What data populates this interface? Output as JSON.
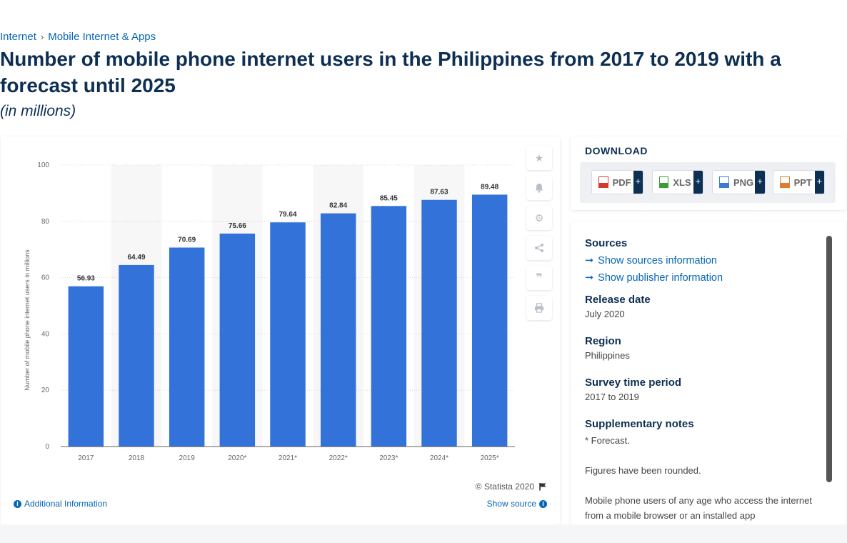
{
  "breadcrumb": {
    "item1": "Internet",
    "item2": "Mobile Internet & Apps",
    "sep": "›"
  },
  "title": "Number of mobile phone internet users in the Philippines from 2017 to 2019 with a forecast until 2025",
  "subtitle": "(in millions)",
  "chart_data": {
    "type": "bar",
    "categories": [
      "2017",
      "2018",
      "2019",
      "2020*",
      "2021*",
      "2022*",
      "2023*",
      "2024*",
      "2025*"
    ],
    "values": [
      56.93,
      64.49,
      70.69,
      75.66,
      79.64,
      82.84,
      85.45,
      87.63,
      89.48
    ],
    "value_labels": [
      "56.93",
      "64.49",
      "70.69",
      "75.66",
      "79.64",
      "82.84",
      "85.45",
      "87.63",
      "89.48"
    ],
    "ylabel": "Number of mobile phone internet users in millions",
    "xlabel": "",
    "ylim": [
      0,
      100
    ],
    "yticks": [
      "0",
      "20",
      "40",
      "60",
      "80",
      "100"
    ],
    "grid": true,
    "bar_color": "#3373d9"
  },
  "chart_footer": {
    "copyright": "© Statista 2020",
    "additional_info": "Additional Information",
    "show_source": "Show source"
  },
  "tools": [
    "star-icon",
    "bell-icon",
    "gear-icon",
    "share-icon",
    "quote-icon",
    "print-icon"
  ],
  "download": {
    "title": "DOWNLOAD",
    "buttons": [
      {
        "label": "PDF",
        "color": "#d9362b"
      },
      {
        "label": "XLS",
        "color": "#3b9a3b"
      },
      {
        "label": "PNG",
        "color": "#3a7bd5"
      },
      {
        "label": "PPT",
        "color": "#e07b2e"
      }
    ],
    "plus": "+"
  },
  "sources": {
    "heading": "Sources",
    "show_sources": "Show sources information",
    "show_publisher": "Show publisher information",
    "release_label": "Release date",
    "release_value": "July 2020",
    "region_label": "Region",
    "region_value": "Philippines",
    "survey_label": "Survey time period",
    "survey_value": "2017 to 2019",
    "supp_label": "Supplementary notes",
    "note1": "* Forecast.",
    "note2": "Figures have been rounded.",
    "note3": "Mobile phone users of any age who access the internet from a mobile browser or an installed app"
  }
}
